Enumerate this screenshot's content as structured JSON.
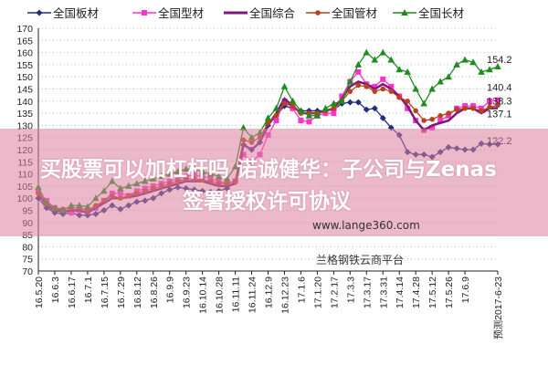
{
  "chart_data": {
    "type": "line",
    "title": "",
    "xlabel": "",
    "ylabel": "",
    "ylim": [
      70,
      170
    ],
    "yticks": [
      70,
      75,
      80,
      85,
      90,
      95,
      100,
      105,
      110,
      115,
      120,
      125,
      130,
      135,
      140,
      145,
      150,
      155,
      160,
      165,
      170
    ],
    "grid": "horizontal dotted",
    "legend_position": "top",
    "x_tick_labels": [
      "16.5.20",
      "16.6.3",
      "16.6.17",
      "16.7.1",
      "16.7.15",
      "16.7.29",
      "16.8.12",
      "16.8.26",
      "16.9.9",
      "16.9.23",
      "16.10.14",
      "16.10.28",
      "16.11.11",
      "16.11.24",
      "16.12.9",
      "16.12.23",
      "17.1.6",
      "17.1.20",
      "17.2.17",
      "17.3.3",
      "17.3.17",
      "17.3.31",
      "17.4.14",
      "17.4.28",
      "17.5.12",
      "17.5.26",
      "17.6.9",
      "预测2017-6-23"
    ],
    "series": [
      {
        "name": "全国板材",
        "color": "#1f2f7a",
        "marker": "diamond",
        "end_label": "122.2",
        "values": [
          100,
          96,
          94,
          93.5,
          94,
          93,
          93,
          93.5,
          95,
          97,
          95.5,
          97,
          98.5,
          99,
          100,
          102,
          103.5,
          104.5,
          104,
          103.5,
          103,
          102.5,
          103,
          104,
          107,
          122,
          120,
          123,
          130,
          134,
          138,
          137,
          136,
          136,
          136,
          136,
          136.5,
          139,
          139.5,
          139.5,
          136.5,
          137,
          133,
          129,
          126,
          119,
          118,
          118,
          117,
          119,
          121,
          120.5,
          120,
          120,
          122.5,
          122.2,
          122.2
        ]
      },
      {
        "name": "全国型材",
        "color": "#ff33cc",
        "marker": "square",
        "end_label": "140.4",
        "values": [
          103,
          99,
          96,
          95,
          94,
          95,
          94.5,
          96,
          99,
          102,
          102,
          101,
          103,
          104,
          105,
          106,
          107,
          108,
          109,
          109.5,
          109,
          108,
          107,
          106,
          107,
          118,
          115,
          118,
          126,
          132,
          140,
          137,
          132,
          131.5,
          134,
          135,
          135,
          142,
          148,
          152,
          147,
          146,
          149,
          146,
          142,
          137,
          132,
          128,
          129,
          132,
          134,
          137,
          138,
          138,
          137,
          140,
          140.4
        ]
      },
      {
        "name": "全国综合",
        "color": "#7a1a7a",
        "marker": "none",
        "end_label": "137.1",
        "values": [
          102,
          97,
          95,
          94.5,
          95,
          95,
          94,
          96,
          98,
          100,
          100,
          100.5,
          101,
          102,
          103,
          104,
          105,
          106,
          107,
          107,
          107,
          106,
          105,
          105,
          106,
          122,
          120,
          123,
          130,
          135,
          141,
          138,
          135,
          135,
          135,
          136,
          137,
          141,
          146,
          148,
          147,
          145,
          147,
          145,
          142,
          138,
          132,
          128,
          130,
          131,
          132,
          135,
          137,
          137,
          135,
          137,
          137.1
        ]
      },
      {
        "name": "全国管材",
        "color": "#b5441a",
        "marker": "circle",
        "end_label": "138.3",
        "values": [
          102,
          98,
          96,
          95.5,
          96,
          96,
          95,
          97,
          99,
          101,
          100,
          101,
          102,
          103,
          104,
          105,
          106,
          107,
          108,
          108,
          107.5,
          107,
          106,
          106,
          107,
          124,
          123,
          125,
          131,
          134,
          139,
          138,
          135,
          135,
          135,
          136,
          137,
          140,
          144,
          146.5,
          146,
          144,
          145,
          144,
          141.5,
          140,
          136,
          132,
          132.5,
          134,
          135,
          136.5,
          137,
          137,
          136,
          137.5,
          138.3
        ]
      },
      {
        "name": "全国长材",
        "color": "#1e8c1e",
        "marker": "triangle",
        "end_label": "154.2",
        "values": [
          104.5,
          98,
          96,
          95,
          97,
          97,
          96.5,
          100,
          103,
          107,
          104,
          105,
          106,
          107,
          108,
          109,
          110,
          111,
          112,
          112,
          111,
          110,
          109,
          108,
          113,
          129,
          125,
          127,
          133,
          137,
          146,
          140,
          136,
          134,
          134,
          137,
          139,
          140,
          148,
          155,
          160,
          157,
          160,
          157,
          153,
          152,
          145,
          139,
          145,
          148,
          150,
          155,
          157,
          156,
          152,
          153,
          154.2
        ]
      }
    ]
  },
  "overlay": {
    "headline_line1": "买股票可以加杠杆吗 诺诚健华：子公司与Zenas",
    "headline_line2": "签署授权许可协议",
    "watermark_url": "www.lange360.com",
    "watermark_name": "兰格钢铁云商平台"
  }
}
